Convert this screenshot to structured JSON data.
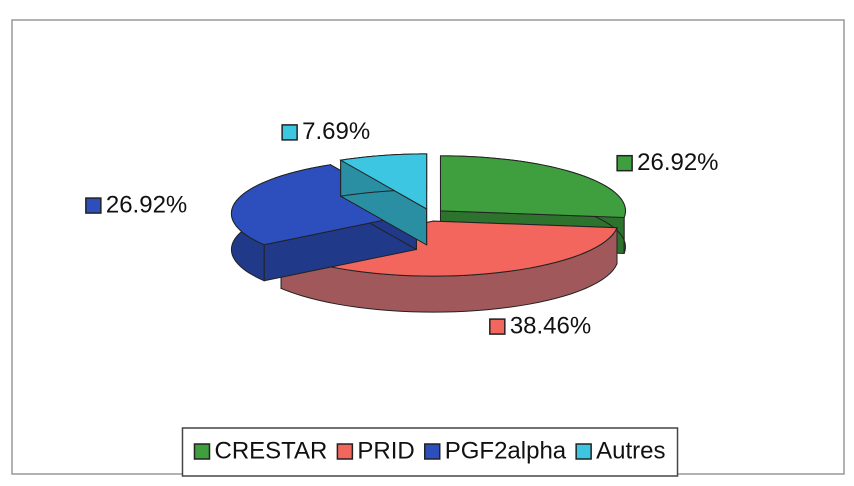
{
  "chart_data": {
    "type": "pie",
    "categories": [
      "CRESTAR",
      "PRID",
      "PGF2alpha",
      "Autres"
    ],
    "values": [
      26.92,
      38.46,
      26.92,
      7.69
    ],
    "value_labels": [
      "26.92%",
      "38.46%",
      "26.92%",
      "7.69%"
    ],
    "colors": [
      "#3f9f3f",
      "#f2665e",
      "#2c4fbd",
      "#3cc6e2"
    ],
    "legend": "bottom"
  }
}
